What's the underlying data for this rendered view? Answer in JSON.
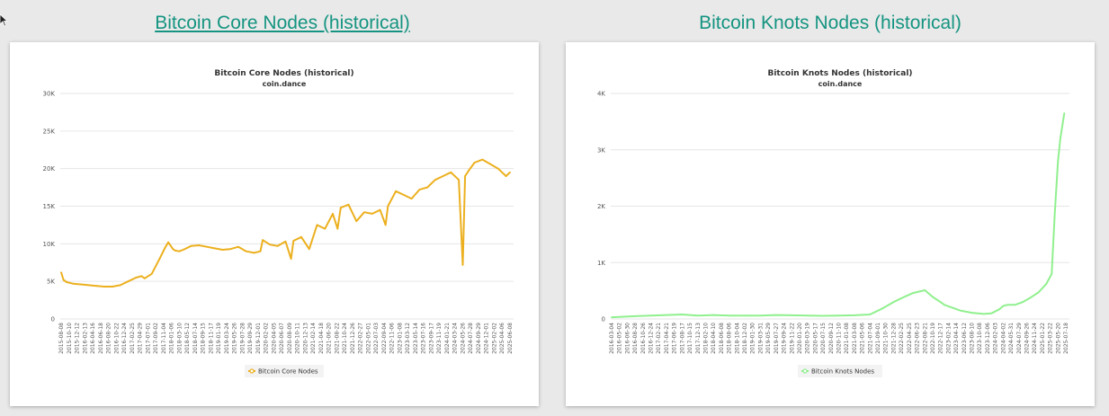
{
  "page": {
    "left_heading": "Bitcoin Core Nodes (historical)",
    "right_heading": "Bitcoin Knots Nodes (historical)"
  },
  "chart_data": [
    {
      "type": "line",
      "title": "Bitcoin Core Nodes (historical)",
      "subtitle": "coin.dance",
      "xlabel": "",
      "ylabel": "",
      "ylim": [
        0,
        30000
      ],
      "y_ticks": [
        "0",
        "5K",
        "10K",
        "15K",
        "20K",
        "25K",
        "30K"
      ],
      "y_tick_values": [
        0,
        5000,
        10000,
        15000,
        20000,
        25000,
        30000
      ],
      "grid": true,
      "legend": "bottom-center",
      "color": "#ecb01f",
      "x_ticks": [
        "2015-08-08",
        "2015-10-10",
        "2015-12-12",
        "2016-02-13",
        "2016-04-16",
        "2016-06-18",
        "2016-08-20",
        "2016-10-22",
        "2016-12-24",
        "2017-02-25",
        "2017-04-29",
        "2017-07-01",
        "2017-09-02",
        "2017-11-04",
        "2018-01-06",
        "2018-03-10",
        "2018-05-12",
        "2018-07-14",
        "2018-09-15",
        "2018-11-17",
        "2019-01-19",
        "2019-03-24",
        "2019-05-26",
        "2019-07-28",
        "2019-09-29",
        "2019-12-01",
        "2020-02-02",
        "2020-04-05",
        "2020-06-07",
        "2020-08-09",
        "2020-10-11",
        "2020-12-13",
        "2021-02-14",
        "2021-04-18",
        "2021-06-20",
        "2021-08-22",
        "2021-10-24",
        "2021-12-26",
        "2022-02-27",
        "2022-05-01",
        "2022-07-03",
        "2022-09-04",
        "2022-11-06",
        "2023-01-08",
        "2023-03-12",
        "2023-05-14",
        "2023-07-16",
        "2023-09-17",
        "2023-11-19",
        "2024-01-21",
        "2024-03-24",
        "2024-05-26",
        "2024-07-28",
        "2024-09-29",
        "2024-12-01",
        "2025-02-02",
        "2025-04-06",
        "2025-06-08"
      ],
      "series": [
        {
          "name": "Bitcoin Core Nodes",
          "x": [
            0,
            0.3,
            0.7,
            1.5,
            2.5,
            3.5,
            4.5,
            5.5,
            6.5,
            7.5,
            8.5,
            9.5,
            10.2,
            10.6,
            11.5,
            12.5,
            13.2,
            13.6,
            14.2,
            14.5,
            15,
            15.5,
            16.5,
            17.5,
            18.5,
            19.5,
            20.5,
            21.5,
            22.5,
            23.5,
            24.5,
            25.3,
            25.6,
            26.5,
            27.5,
            28.5,
            29.2,
            29.5,
            30.5,
            31.5,
            32.5,
            33.5,
            34.5,
            35.1,
            35.5,
            36.5,
            37.5,
            38.5,
            39.5,
            40.5,
            41.2,
            41.5,
            42.5,
            43.5,
            44.5,
            45.5,
            46.5,
            47.5,
            48.5,
            49.5,
            50.5,
            51,
            51.3,
            51.8,
            52.5,
            53.5,
            54.5,
            55.5,
            56.5,
            57
          ],
          "y": [
            6200,
            5200,
            4900,
            4700,
            4600,
            4500,
            4400,
            4300,
            4300,
            4500,
            5000,
            5500,
            5700,
            5400,
            6000,
            8000,
            9500,
            10200,
            9300,
            9100,
            9000,
            9200,
            9700,
            9800,
            9600,
            9400,
            9200,
            9300,
            9600,
            9000,
            8800,
            9000,
            10500,
            9900,
            9700,
            10300,
            8000,
            10400,
            10900,
            9300,
            12500,
            12000,
            14000,
            12000,
            14800,
            15200,
            13000,
            14200,
            14000,
            14500,
            12500,
            15000,
            17000,
            16500,
            16000,
            17200,
            17500,
            18500,
            19000,
            19500,
            18500,
            7200,
            19000,
            19800,
            20800,
            21200,
            20600,
            20000,
            19000,
            19500
          ]
        }
      ]
    },
    {
      "type": "line",
      "title": "Bitcoin Knots Nodes (historical)",
      "subtitle": "coin.dance",
      "xlabel": "",
      "ylabel": "",
      "ylim": [
        0,
        4000
      ],
      "y_ticks": [
        "0",
        "1K",
        "2K",
        "3K",
        "4K"
      ],
      "y_tick_values": [
        0,
        1000,
        2000,
        3000,
        4000
      ],
      "grid": true,
      "legend": "bottom-center",
      "color": "#90f08e",
      "x_ticks": [
        "2016-03-04",
        "2016-05-02",
        "2016-06-30",
        "2016-08-28",
        "2016-10-26",
        "2016-12-24",
        "2017-02-21",
        "2017-04-21",
        "2017-06-19",
        "2017-08-17",
        "2017-10-15",
        "2017-12-13",
        "2018-02-10",
        "2018-04-10",
        "2018-06-08",
        "2018-08-06",
        "2018-10-04",
        "2018-12-02",
        "2019-01-30",
        "2019-03-31",
        "2019-05-29",
        "2019-07-27",
        "2019-09-24",
        "2019-11-22",
        "2020-01-20",
        "2020-03-19",
        "2020-05-17",
        "2020-07-15",
        "2020-09-12",
        "2020-11-10",
        "2021-01-08",
        "2021-03-08",
        "2021-05-06",
        "2021-07-04",
        "2021-09-01",
        "2021-10-30",
        "2021-12-28",
        "2022-02-25",
        "2022-04-25",
        "2022-06-23",
        "2022-08-21",
        "2022-10-19",
        "2022-12-17",
        "2023-02-14",
        "2023-04-14",
        "2023-06-12",
        "2023-08-10",
        "2023-10-08",
        "2023-12-06",
        "2024-02-03",
        "2024-04-02",
        "2024-05-31",
        "2024-07-29",
        "2024-09-26",
        "2024-11-24",
        "2025-01-22",
        "2025-03-22",
        "2025-05-20",
        "2025-07-18"
      ],
      "series": [
        {
          "name": "Bitcoin Knots Nodes",
          "x": [
            0,
            1.5,
            3,
            5,
            7,
            9,
            11,
            13,
            15,
            17,
            19,
            21,
            23,
            25,
            27,
            29,
            31,
            33,
            34.5,
            36,
            37.5,
            38.5,
            40,
            41,
            42,
            42.5,
            43.5,
            44.5,
            46,
            47.5,
            48.5,
            49.5,
            50,
            50.5,
            51.5,
            52.5,
            53.5,
            54.5,
            55.5,
            56.2,
            56.6,
            57,
            57.3,
            57.8
          ],
          "y": [
            30,
            40,
            50,
            60,
            70,
            80,
            60,
            70,
            60,
            60,
            60,
            70,
            65,
            60,
            55,
            60,
            65,
            80,
            180,
            300,
            400,
            460,
            510,
            390,
            300,
            250,
            200,
            150,
            110,
            90,
            100,
            170,
            230,
            250,
            250,
            300,
            380,
            470,
            620,
            800,
            1900,
            2800,
            3200,
            3650
          ]
        }
      ]
    }
  ]
}
